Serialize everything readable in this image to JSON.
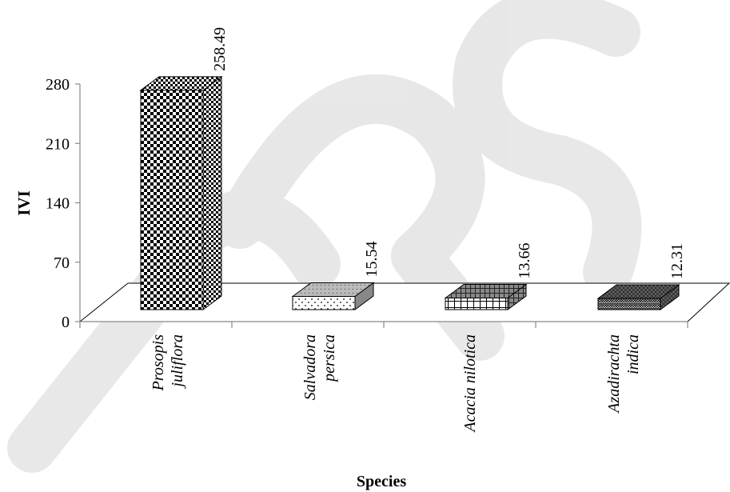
{
  "chart_data": {
    "type": "bar",
    "categories": [
      [
        "Prosopis",
        "juliflora"
      ],
      [
        "Salvadora",
        "persica"
      ],
      [
        "Acacia nilotica"
      ],
      [
        "Azadirachta",
        "indica"
      ]
    ],
    "values": [
      258.49,
      15.54,
      13.66,
      12.31
    ],
    "value_labels": [
      "258.49",
      "15.54",
      "13.66",
      "12.31"
    ],
    "xlabel": "Species",
    "ylabel": "IVI",
    "yticks": [
      "0",
      "70",
      "140",
      "210",
      "280"
    ],
    "ylim": [
      0,
      280
    ],
    "grid": false,
    "legend": "none",
    "three_d": true
  },
  "watermark": "IJRS"
}
